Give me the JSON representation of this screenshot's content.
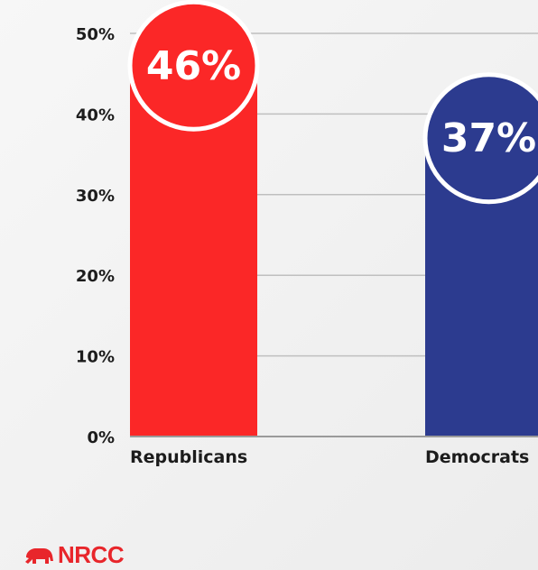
{
  "colors": {
    "republican": "#fb2727",
    "democrat": "#2c3b8f",
    "grid": "#bfbfbf",
    "axis": "#9a9a9a",
    "brand": "#e8262b"
  },
  "chart_data": {
    "type": "bar",
    "categories": [
      "Republicans",
      "Democrats"
    ],
    "values": [
      46,
      37
    ],
    "data_labels": [
      "46%",
      "37%"
    ],
    "yticks": [
      "0%",
      "10%",
      "20%",
      "30%",
      "40%",
      "50%"
    ],
    "ylim": [
      0,
      50
    ],
    "grid": true,
    "title": "",
    "xlabel": "",
    "ylabel": ""
  },
  "brand": {
    "name": "NRCC",
    "icon": "elephant-icon"
  }
}
